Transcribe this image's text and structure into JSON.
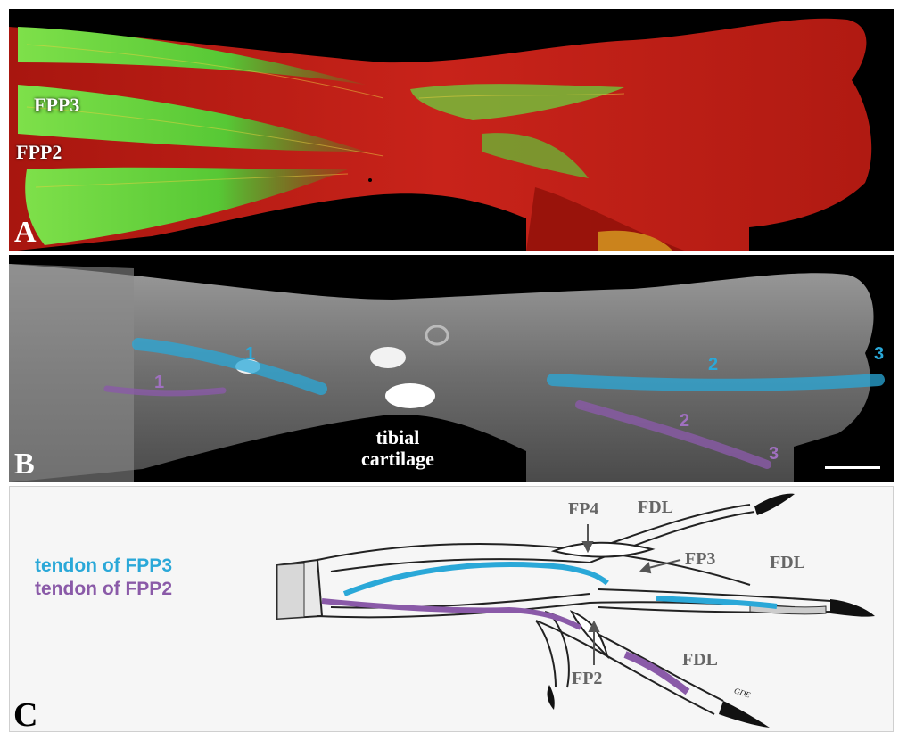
{
  "colors": {
    "fpp3_tendon": "#2aa8d8",
    "fpp2_tendon": "#8a5aa8",
    "muscle_green": "#5fcf3a",
    "tissue_red": "#c8221a",
    "label_grey": "#666666"
  },
  "panel_a": {
    "letter": "A",
    "labels": {
      "fpp3": "FPP3",
      "fpp2": "FPP2"
    }
  },
  "panel_b": {
    "letter": "B",
    "numbers_blue": [
      "1",
      "2",
      "3"
    ],
    "numbers_purple": [
      "1",
      "2",
      "3"
    ],
    "cartilage_line1": "tibial",
    "cartilage_line2": "cartilage",
    "has_scale_bar": true
  },
  "panel_c": {
    "letter": "C",
    "tendon_fpp3": "tendon of FPP3",
    "tendon_fpp2": "tendon of FPP2",
    "fp4": "FP4",
    "fp3": "FP3",
    "fp2": "FP2",
    "fdl_top": "FDL",
    "fdl_mid": "FDL",
    "fdl_bottom": "FDL"
  }
}
